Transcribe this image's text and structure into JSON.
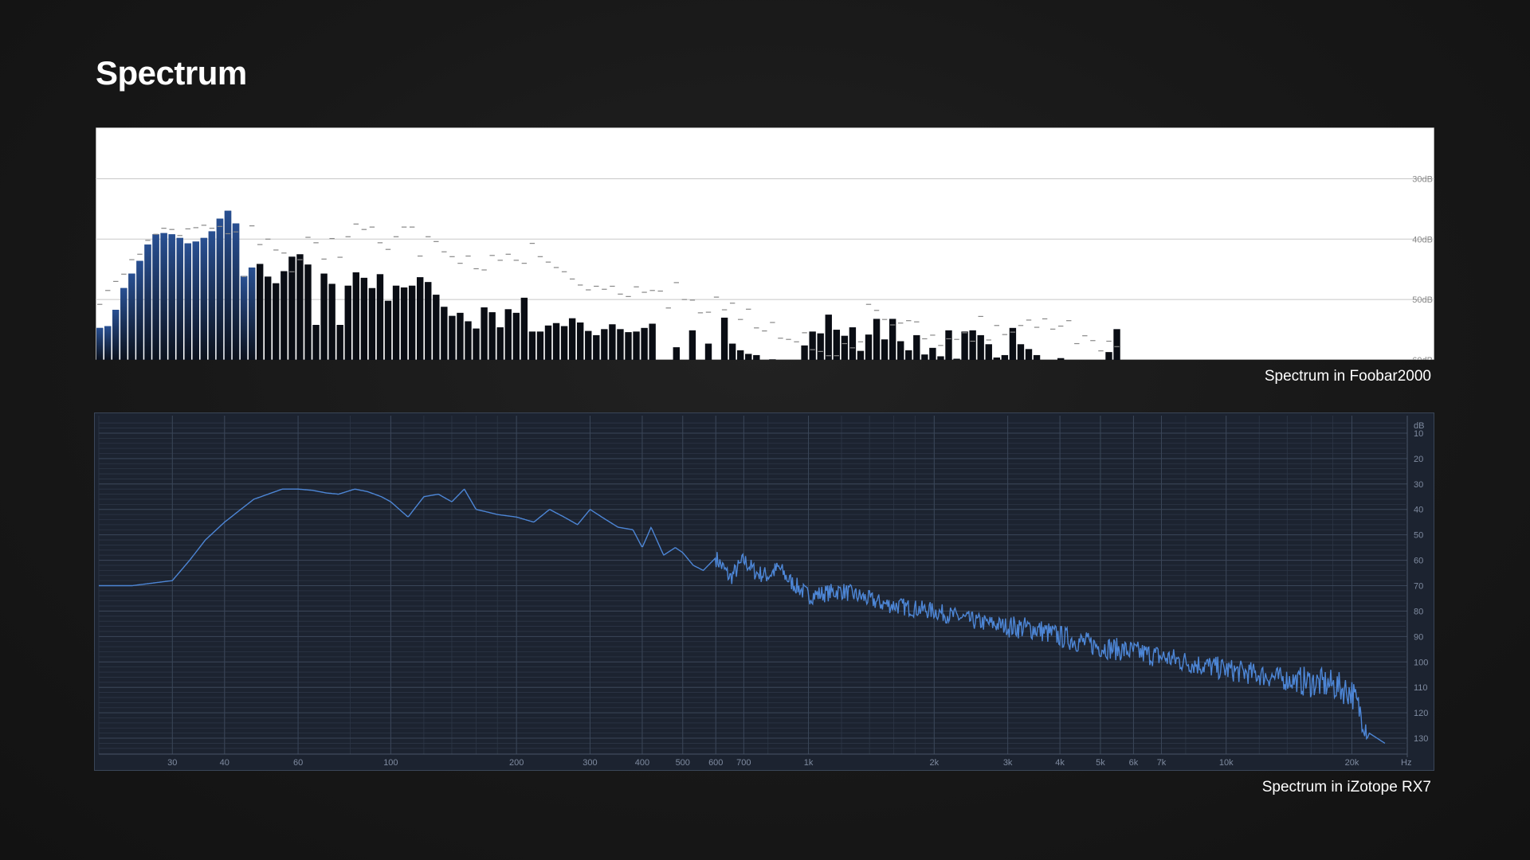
{
  "page": {
    "title": "Spectrum"
  },
  "captions": {
    "foobar": "Spectrum in Foobar2000",
    "izotope": "Spectrum in iZotope RX7"
  },
  "colors": {
    "bar_dark": "#0a0d14",
    "bar_blue": "#1c3a6e",
    "line_blue": "#4d86d6",
    "rx_bg": "#1c2330",
    "rx_grid": "#3a4658"
  },
  "chart_data": [
    {
      "type": "bar",
      "name": "foobar2000-spectrum",
      "ylabel_ticks": [
        "30dB",
        "40dB",
        "50dB",
        "60dB"
      ],
      "ylim": [
        60,
        21.5
      ],
      "tick_values": [
        30,
        40,
        50,
        60
      ],
      "values": [
        54.7,
        54.4,
        51.7,
        48.1,
        45.7,
        43.6,
        40.9,
        39.2,
        39,
        39.2,
        39.8,
        40.7,
        40.4,
        39.8,
        38.7,
        36.6,
        35.3,
        37.4,
        46.1,
        44.7,
        44.1,
        46.2,
        47.3,
        45.3,
        42.9,
        42.5,
        44.2,
        54.2,
        45.7,
        47.4,
        54.2,
        47.7,
        45.5,
        46.4,
        48.1,
        45.8,
        50.2,
        47.7,
        48,
        47.7,
        46.3,
        47.1,
        49.2,
        51.2,
        52.7,
        52.2,
        53.6,
        54.8,
        51.3,
        52.1,
        54.6,
        51.6,
        52.2,
        49.7,
        55.3,
        55.3,
        54.3,
        53.9,
        54.4,
        53.1,
        53.8,
        55.2,
        55.9,
        54.9,
        54.1,
        54.9,
        55.4,
        55.3,
        54.7,
        54,
        60,
        60,
        57.9,
        60,
        55.1,
        60,
        57.3,
        60,
        53,
        57.3,
        58.4,
        59,
        59.2,
        60,
        59.9,
        60,
        60,
        60,
        57.6,
        55.3,
        55.6,
        52.5,
        55,
        56,
        54.6,
        58.5,
        55.8,
        53.2,
        56.6,
        53.2,
        56.9,
        58.4,
        55.9,
        59.1,
        58,
        59.4,
        55.1,
        59.8,
        55.3,
        55.1,
        55.9,
        57.4,
        59.6,
        59.2,
        54.7,
        57.4,
        58.2,
        59.2,
        60,
        60,
        59.7,
        60,
        60,
        60,
        60,
        60,
        58.7,
        54.9
      ],
      "peaks": [
        50.8,
        48.5,
        47,
        45.8,
        43.4,
        42.5,
        40.2,
        39.2,
        38.2,
        38.4,
        39.4,
        38.3,
        38.1,
        37.7,
        38.2,
        37.9,
        39.1,
        38.8,
        46.2,
        37.8,
        40.9,
        40,
        41.8,
        42.3,
        45.4,
        43.4,
        39.7,
        40.6,
        43.3,
        39.9,
        43,
        39.6,
        37.5,
        38.4,
        38,
        40.6,
        41.7,
        39.6,
        38,
        38,
        42.8,
        39.6,
        40.4,
        42.1,
        42.9,
        44,
        42.8,
        44.9,
        45.1,
        42.7,
        43.5,
        42.5,
        43.5,
        44,
        40.7,
        42.9,
        43.8,
        44.7,
        45.4,
        46.6,
        47.6,
        48.4,
        47.8,
        48.3,
        47.8,
        49.1,
        49.5,
        47.9,
        48.8,
        48.5,
        48.6,
        51.4,
        47.2,
        50,
        50.1,
        52.2,
        52.1,
        49.6,
        51.7,
        50.6,
        53.3,
        51.6,
        54.7,
        55.2,
        53.8,
        56.4,
        56.6,
        57,
        55.5,
        58.3,
        58.6,
        59.3,
        59.3,
        57.3,
        58,
        57,
        50.8,
        51.8,
        53.3,
        54.2,
        53.9,
        53.5,
        53.7,
        56.5,
        55.9,
        57.6,
        56.5,
        56.6,
        55.5,
        56.9,
        52.8,
        56.7,
        54.3,
        55.8,
        55.4,
        54.3,
        53.4,
        54.6,
        53.2,
        54.9,
        54.4,
        53.5,
        57.3,
        56,
        56.8,
        58.5,
        56.9,
        57.8,
        53.2,
        55.2,
        50.2,
        56.4
      ]
    },
    {
      "type": "line",
      "name": "izotope-rx7-spectrum",
      "xlabel_unit": "Hz",
      "ylabel_unit": "dB",
      "xscale": "log",
      "xlim": [
        20,
        24000
      ],
      "ylim": [
        -5,
        -135
      ],
      "x_ticks": [
        {
          "v": 30,
          "l": "30"
        },
        {
          "v": 40,
          "l": "40"
        },
        {
          "v": 60,
          "l": "60"
        },
        {
          "v": 100,
          "l": "100"
        },
        {
          "v": 200,
          "l": "200"
        },
        {
          "v": 300,
          "l": "300"
        },
        {
          "v": 400,
          "l": "400"
        },
        {
          "v": 500,
          "l": "500"
        },
        {
          "v": 600,
          "l": "600"
        },
        {
          "v": 700,
          "l": "700"
        },
        {
          "v": 1000,
          "l": "1k"
        },
        {
          "v": 2000,
          "l": "2k"
        },
        {
          "v": 3000,
          "l": "3k"
        },
        {
          "v": 4000,
          "l": "4k"
        },
        {
          "v": 5000,
          "l": "5k"
        },
        {
          "v": 6000,
          "l": "6k"
        },
        {
          "v": 7000,
          "l": "7k"
        },
        {
          "v": 10000,
          "l": "10k"
        },
        {
          "v": 20000,
          "l": "20k"
        }
      ],
      "y_ticks": [
        -10,
        -20,
        -30,
        -40,
        -50,
        -60,
        -70,
        -80,
        -90,
        -100,
        -110,
        -120,
        -130
      ],
      "y_tick_labels": [
        "10",
        "20",
        "30",
        "40",
        "50",
        "60",
        "70",
        "80",
        "90",
        "100",
        "110",
        "120",
        "130"
      ],
      "x": [
        20,
        24,
        30,
        33,
        36,
        40,
        47,
        55,
        60,
        65,
        70,
        75,
        82,
        88,
        95,
        100,
        110,
        120,
        130,
        140,
        150,
        160,
        170,
        180,
        200,
        220,
        240,
        260,
        280,
        300,
        320,
        350,
        380,
        400,
        420,
        450,
        480,
        500,
        530,
        560,
        600,
        650,
        700,
        750,
        800,
        850,
        900,
        950,
        1000,
        1200,
        1500,
        1800,
        2000,
        2500,
        3000,
        3500,
        4000,
        5000,
        6000,
        7000,
        8000,
        10000,
        12000,
        14000,
        16000,
        18000,
        20000,
        22000,
        24000
      ],
      "y": [
        -70,
        -70,
        -68,
        -60,
        -52,
        -45,
        -36,
        -32,
        -32,
        -32.5,
        -33.5,
        -34,
        -32,
        -33,
        -35,
        -37,
        -43,
        -35,
        -34,
        -37,
        -32,
        -40,
        -41,
        -42,
        -43,
        -45,
        -40,
        -43,
        -46,
        -40,
        -43,
        -47,
        -48,
        -55,
        -47,
        -58,
        -55,
        -57,
        -62,
        -64,
        -59,
        -67,
        -60,
        -65,
        -66,
        -63,
        -68,
        -71,
        -74,
        -72,
        -77,
        -79,
        -80,
        -84,
        -86,
        -87,
        -90,
        -94,
        -96,
        -98,
        -100,
        -103,
        -105,
        -107,
        -108,
        -109,
        -112,
        -128,
        -132
      ]
    }
  ]
}
